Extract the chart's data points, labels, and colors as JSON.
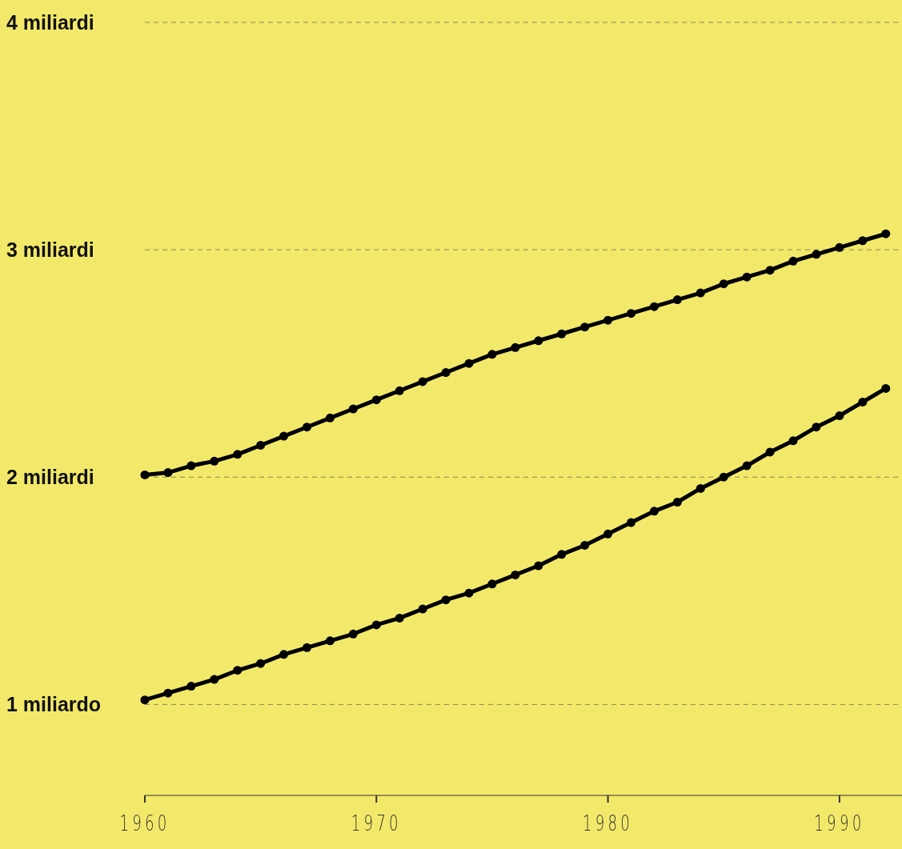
{
  "chart_data": {
    "type": "line",
    "x": [
      1960,
      1961,
      1962,
      1963,
      1964,
      1965,
      1966,
      1967,
      1968,
      1969,
      1970,
      1971,
      1972,
      1973,
      1974,
      1975,
      1976,
      1977,
      1978,
      1979,
      1980,
      1981,
      1982,
      1983,
      1984,
      1985,
      1986,
      1987,
      1988,
      1989,
      1990,
      1991,
      1992
    ],
    "series": [
      {
        "color": "#000000",
        "values": [
          2.01,
          2.02,
          2.05,
          2.07,
          2.1,
          2.14,
          2.18,
          2.22,
          2.26,
          2.3,
          2.34,
          2.38,
          2.42,
          2.46,
          2.5,
          2.54,
          2.57,
          2.6,
          2.63,
          2.66,
          2.69,
          2.72,
          2.75,
          2.78,
          2.81,
          2.85,
          2.88,
          2.91,
          2.95,
          2.98,
          3.01,
          3.04,
          3.07
        ]
      },
      {
        "color": "#000000",
        "values": [
          1.02,
          1.05,
          1.08,
          1.11,
          1.15,
          1.18,
          1.22,
          1.25,
          1.28,
          1.31,
          1.35,
          1.38,
          1.42,
          1.46,
          1.49,
          1.53,
          1.57,
          1.61,
          1.66,
          1.7,
          1.75,
          1.8,
          1.85,
          1.89,
          1.95,
          2.0,
          2.05,
          2.11,
          2.16,
          2.22,
          2.27,
          2.33,
          2.39
        ]
      }
    ],
    "xlim": [
      1960,
      1992.7
    ],
    "xticks": [
      1960,
      1970,
      1980,
      1990
    ],
    "ylim": [
      0.6,
      4
    ],
    "yticks": [
      {
        "value": 1,
        "label": "1 miliardo"
      },
      {
        "value": 2,
        "label": "2 miliardi"
      },
      {
        "value": 3,
        "label": "3 miliardi"
      },
      {
        "value": 4,
        "label": "4 miliardi"
      }
    ],
    "grid": "y",
    "marker": "circle",
    "line_style": "solid"
  }
}
